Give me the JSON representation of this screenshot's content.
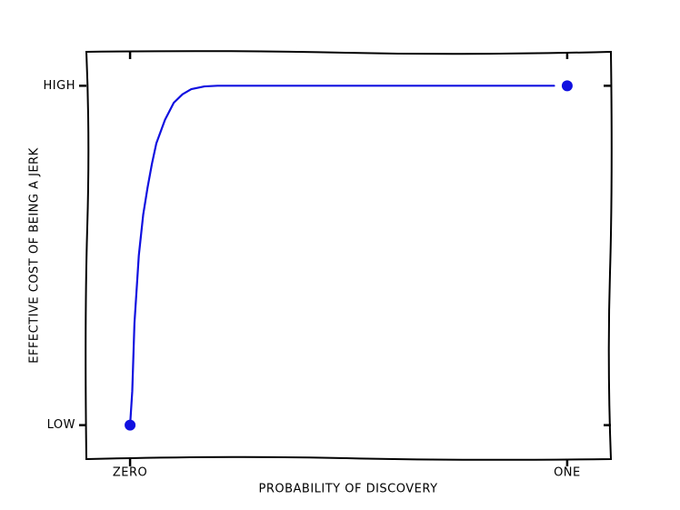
{
  "chart_data": {
    "type": "line",
    "xlabel": "PROBABILITY OF DISCOVERY",
    "ylabel": "EFFECTIVE COST OF BEING A JERK",
    "x": [
      0,
      0.005,
      0.01,
      0.02,
      0.03,
      0.04,
      0.05,
      0.06,
      0.08,
      0.1,
      0.12,
      0.14,
      0.17,
      0.2,
      0.3,
      0.4,
      0.5,
      0.6,
      0.7,
      0.8,
      0.9,
      0.97
    ],
    "series": [
      {
        "color": "#1010e0",
        "values": [
          0,
          0.1,
          0.3,
          0.5,
          0.62,
          0.7,
          0.77,
          0.83,
          0.9,
          0.95,
          0.975,
          0.99,
          0.998,
          1,
          1,
          1,
          1,
          1,
          1,
          1,
          1,
          1
        ]
      }
    ],
    "points": {
      "x": [
        0,
        1
      ],
      "values": [
        0,
        1
      ],
      "color": "#1010e0"
    },
    "xlim": [
      -0.1,
      1.1
    ],
    "ylim": [
      -0.1,
      1.1
    ],
    "xticks": [
      {
        "value": 0,
        "label": "ZERO"
      },
      {
        "value": 1,
        "label": "ONE"
      }
    ],
    "yticks": [
      {
        "value": 0,
        "label": "LOW"
      },
      {
        "value": 1,
        "label": "HIGH"
      }
    ]
  }
}
